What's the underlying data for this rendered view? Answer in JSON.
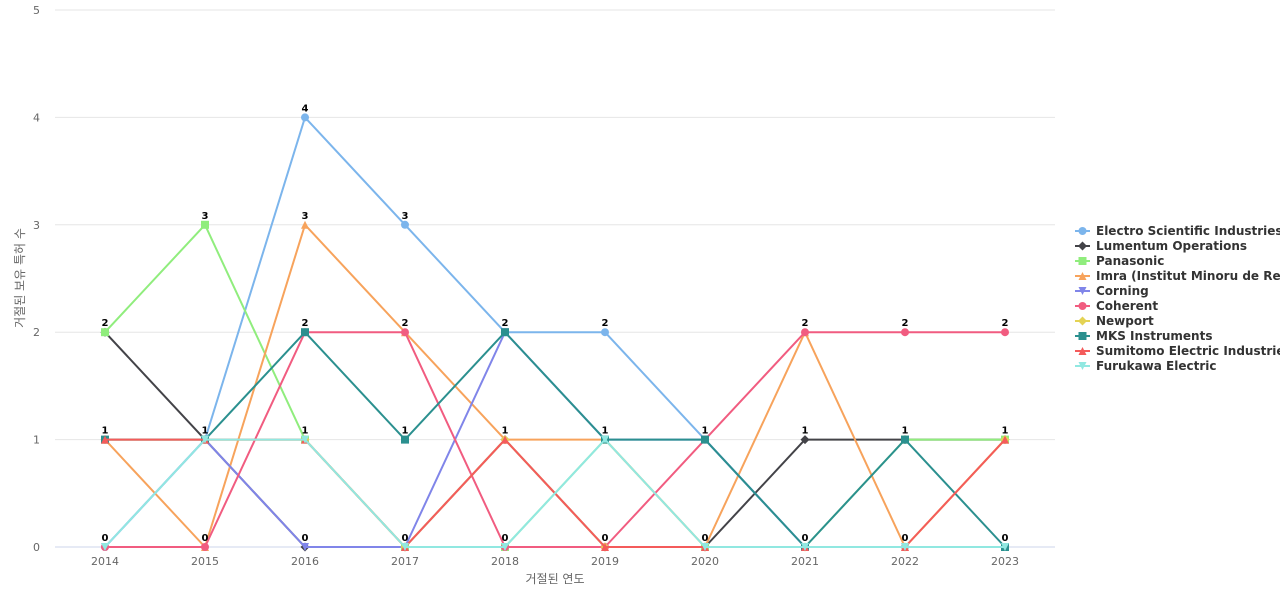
{
  "chart_data": {
    "type": "line",
    "x": [
      "2014",
      "2015",
      "2016",
      "2017",
      "2018",
      "2019",
      "2020",
      "2021",
      "2022",
      "2023"
    ],
    "xlabel": "거절된 연도",
    "ylabel": "거절된 보유 특허 수",
    "ylim": [
      0,
      5
    ],
    "yticks": [
      0,
      1,
      2,
      3,
      4,
      5
    ],
    "grid": "horizontal",
    "legend_position": "right",
    "series": [
      {
        "name": "Electro Scientific Industries",
        "color": "#7cb5ec",
        "marker": "circle",
        "values": [
          0,
          1,
          4,
          3,
          2,
          2,
          1,
          0,
          0,
          0
        ]
      },
      {
        "name": "Lumentum Operations",
        "color": "#434348",
        "marker": "diamond",
        "values": [
          2,
          1,
          0,
          0,
          1,
          0,
          0,
          1,
          1,
          1
        ]
      },
      {
        "name": "Panasonic",
        "color": "#90ed7d",
        "marker": "square",
        "values": [
          2,
          3,
          1,
          0,
          0,
          1,
          0,
          0,
          1,
          1
        ]
      },
      {
        "name": "Imra (Institut Minoru de Re...",
        "color": "#f7a35c",
        "marker": "triangle",
        "values": [
          1,
          0,
          3,
          2,
          1,
          1,
          0,
          2,
          0,
          1
        ]
      },
      {
        "name": "Corning",
        "color": "#8085e9",
        "marker": "triangle-down",
        "values": [
          0,
          1,
          0,
          0,
          2,
          1,
          1,
          0,
          0,
          0
        ]
      },
      {
        "name": "Coherent",
        "color": "#f15c80",
        "marker": "circle",
        "values": [
          0,
          0,
          2,
          2,
          0,
          0,
          1,
          2,
          2,
          2
        ]
      },
      {
        "name": "Newport",
        "color": "#e4d354",
        "marker": "diamond",
        "values": [
          1,
          1,
          1,
          0,
          1,
          0,
          0,
          0,
          0,
          1
        ]
      },
      {
        "name": "MKS Instruments",
        "color": "#2b908f",
        "marker": "square",
        "values": [
          1,
          1,
          2,
          1,
          2,
          1,
          1,
          0,
          1,
          0
        ]
      },
      {
        "name": "Sumitomo Electric Industries",
        "color": "#f45b5b",
        "marker": "triangle",
        "values": [
          1,
          1,
          1,
          0,
          1,
          0,
          0,
          0,
          0,
          1
        ]
      },
      {
        "name": "Furukawa Electric",
        "color": "#91e8e1",
        "marker": "triangle-down",
        "values": [
          0,
          1,
          1,
          0,
          0,
          1,
          0,
          0,
          0,
          0
        ]
      }
    ],
    "data_labels": [
      {
        "x": "2014",
        "value": 2
      },
      {
        "x": "2014",
        "value": 1
      },
      {
        "x": "2014",
        "value": 0
      },
      {
        "x": "2015",
        "value": 3
      },
      {
        "x": "2015",
        "value": 1
      },
      {
        "x": "2015",
        "value": 0
      },
      {
        "x": "2016",
        "value": 4
      },
      {
        "x": "2016",
        "value": 3
      },
      {
        "x": "2016",
        "value": 2
      },
      {
        "x": "2016",
        "value": 1
      },
      {
        "x": "2016",
        "value": 0
      },
      {
        "x": "2017",
        "value": 3
      },
      {
        "x": "2017",
        "value": 2
      },
      {
        "x": "2017",
        "value": 1
      },
      {
        "x": "2017",
        "value": 0
      },
      {
        "x": "2018",
        "value": 2
      },
      {
        "x": "2018",
        "value": 1
      },
      {
        "x": "2018",
        "value": 0
      },
      {
        "x": "2019",
        "value": 2
      },
      {
        "x": "2019",
        "value": 1
      },
      {
        "x": "2019",
        "value": 0
      },
      {
        "x": "2020",
        "value": 1
      },
      {
        "x": "2020",
        "value": 0
      },
      {
        "x": "2021",
        "value": 2
      },
      {
        "x": "2021",
        "value": 1
      },
      {
        "x": "2021",
        "value": 0
      },
      {
        "x": "2022",
        "value": 2
      },
      {
        "x": "2022",
        "value": 1
      },
      {
        "x": "2022",
        "value": 0
      },
      {
        "x": "2023",
        "value": 2
      },
      {
        "x": "2023",
        "value": 1
      },
      {
        "x": "2023",
        "value": 0
      }
    ]
  }
}
